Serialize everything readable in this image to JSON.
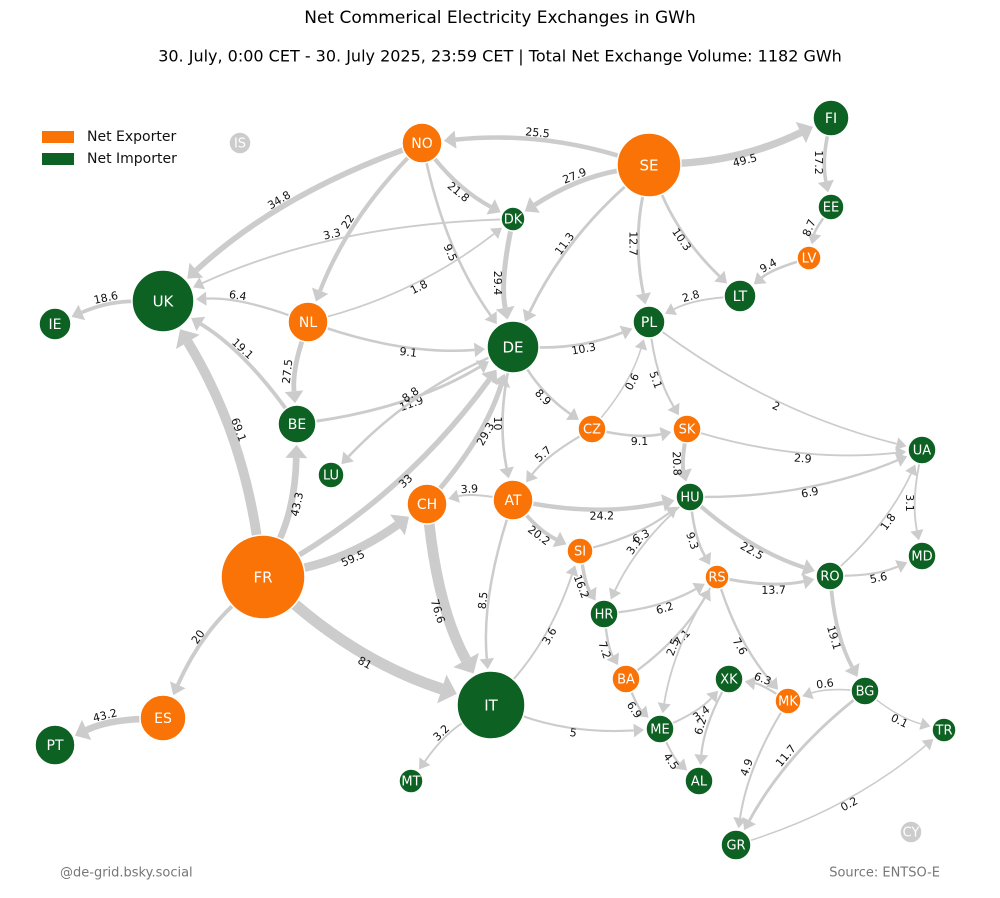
{
  "title": "Net Commerical Electricity Exchanges in GWh",
  "subtitle": "30. July, 0:00 CET - 30. July 2025, 23:59 CET | Total Net Exchange Volume: 1182 GWh",
  "legend": [
    {
      "label": "Net Exporter",
      "color": "#f97306"
    },
    {
      "label": "Net Importer",
      "color": "#0d6123"
    }
  ],
  "neutral_color": "#cccccc",
  "edge_color": "#cccccc",
  "nodes": [
    {
      "label": "IS",
      "group": null
    },
    {
      "label": "NO",
      "group": 0
    },
    {
      "label": "SE",
      "group": 0
    },
    {
      "label": "FI",
      "group": 1
    },
    {
      "label": "DK",
      "group": 1
    },
    {
      "label": "EE",
      "group": 1
    },
    {
      "label": "LV",
      "group": 0
    },
    {
      "label": "UK",
      "group": 1
    },
    {
      "label": "IE",
      "group": 1
    },
    {
      "label": "NL",
      "group": 0
    },
    {
      "label": "DE",
      "group": 1
    },
    {
      "label": "PL",
      "group": 1
    },
    {
      "label": "LT",
      "group": 1
    },
    {
      "label": "BE",
      "group": 1
    },
    {
      "label": "LU",
      "group": 1
    },
    {
      "label": "CZ",
      "group": 0
    },
    {
      "label": "SK",
      "group": 0
    },
    {
      "label": "UA",
      "group": 1
    },
    {
      "label": "CH",
      "group": 0
    },
    {
      "label": "AT",
      "group": 0
    },
    {
      "label": "HU",
      "group": 1
    },
    {
      "label": "FR",
      "group": 0
    },
    {
      "label": "SI",
      "group": 0
    },
    {
      "label": "MD",
      "group": 1
    },
    {
      "label": "RS",
      "group": 0
    },
    {
      "label": "RO",
      "group": 1
    },
    {
      "label": "HR",
      "group": 1
    },
    {
      "label": "BA",
      "group": 0
    },
    {
      "label": "XK",
      "group": 1
    },
    {
      "label": "MK",
      "group": 0
    },
    {
      "label": "BG",
      "group": 1
    },
    {
      "label": "ES",
      "group": 0
    },
    {
      "label": "IT",
      "group": 1
    },
    {
      "label": "ME",
      "group": 1
    },
    {
      "label": "TR",
      "group": 1
    },
    {
      "label": "PT",
      "group": 1
    },
    {
      "label": "MT",
      "group": 1
    },
    {
      "label": "AL",
      "group": 1
    },
    {
      "label": "GR",
      "group": 1
    },
    {
      "label": "CY",
      "group": null
    }
  ],
  "edges": [
    {
      "from": 1,
      "to": 7,
      "value": 34.8
    },
    {
      "from": 1,
      "to": 9,
      "value": 22.0
    },
    {
      "from": 4,
      "to": 7,
      "value": 3.3
    },
    {
      "from": 9,
      "to": 4,
      "value": 1.8
    },
    {
      "from": 1,
      "to": 4,
      "value": 21.8
    },
    {
      "from": 1,
      "to": 10,
      "value": 9.5
    },
    {
      "from": 2,
      "to": 1,
      "value": 25.5
    },
    {
      "from": 2,
      "to": 4,
      "value": 27.9
    },
    {
      "from": 2,
      "to": 10,
      "value": 11.3
    },
    {
      "from": 2,
      "to": 11,
      "value": 12.7
    },
    {
      "from": 2,
      "to": 12,
      "value": 10.3
    },
    {
      "from": 2,
      "to": 3,
      "value": 49.5
    },
    {
      "from": 3,
      "to": 5,
      "value": 17.2
    },
    {
      "from": 5,
      "to": 6,
      "value": 8.7
    },
    {
      "from": 6,
      "to": 12,
      "value": 9.4
    },
    {
      "from": 12,
      "to": 11,
      "value": 2.8
    },
    {
      "from": 4,
      "to": 10,
      "value": 29.4
    },
    {
      "from": 9,
      "to": 7,
      "value": 6.4
    },
    {
      "from": 7,
      "to": 8,
      "value": 18.6
    },
    {
      "from": 9,
      "to": 10,
      "value": 9.1
    },
    {
      "from": 9,
      "to": 13,
      "value": 27.5
    },
    {
      "from": 13,
      "to": 7,
      "value": 19.1
    },
    {
      "from": 13,
      "to": 10,
      "value": 11.9
    },
    {
      "from": 10,
      "to": 14,
      "value": 8.8
    },
    {
      "from": 21,
      "to": 7,
      "value": 69.1
    },
    {
      "from": 21,
      "to": 13,
      "value": 43.3
    },
    {
      "from": 21,
      "to": 10,
      "value": 33.0
    },
    {
      "from": 21,
      "to": 18,
      "value": 59.5
    },
    {
      "from": 21,
      "to": 32,
      "value": 81.0
    },
    {
      "from": 18,
      "to": 10,
      "value": 29.3
    },
    {
      "from": 18,
      "to": 32,
      "value": 76.6
    },
    {
      "from": 19,
      "to": 18,
      "value": 3.9
    },
    {
      "from": 10,
      "to": 19,
      "value": 10.0
    },
    {
      "from": 19,
      "to": 32,
      "value": 8.5
    },
    {
      "from": 10,
      "to": 11,
      "value": 10.3
    },
    {
      "from": 10,
      "to": 15,
      "value": 8.9
    },
    {
      "from": 15,
      "to": 11,
      "value": 0.6
    },
    {
      "from": 15,
      "to": 19,
      "value": 5.7
    },
    {
      "from": 15,
      "to": 16,
      "value": 9.1
    },
    {
      "from": 11,
      "to": 16,
      "value": 5.1
    },
    {
      "from": 11,
      "to": 17,
      "value": 2.0
    },
    {
      "from": 16,
      "to": 17,
      "value": 2.9
    },
    {
      "from": 16,
      "to": 20,
      "value": 20.8
    },
    {
      "from": 19,
      "to": 20,
      "value": 24.2
    },
    {
      "from": 19,
      "to": 22,
      "value": 20.2
    },
    {
      "from": 20,
      "to": 17,
      "value": 6.9
    },
    {
      "from": 22,
      "to": 20,
      "value": 6.3
    },
    {
      "from": 20,
      "to": 26,
      "value": 3.1
    },
    {
      "from": 20,
      "to": 24,
      "value": 9.3
    },
    {
      "from": 20,
      "to": 25,
      "value": 22.5
    },
    {
      "from": 22,
      "to": 26,
      "value": 16.2
    },
    {
      "from": 32,
      "to": 22,
      "value": 3.6
    },
    {
      "from": 25,
      "to": 17,
      "value": 1.8
    },
    {
      "from": 17,
      "to": 23,
      "value": 3.1
    },
    {
      "from": 25,
      "to": 23,
      "value": 5.6
    },
    {
      "from": 24,
      "to": 25,
      "value": 13.7
    },
    {
      "from": 26,
      "to": 24,
      "value": 6.2
    },
    {
      "from": 26,
      "to": 27,
      "value": 7.2
    },
    {
      "from": 27,
      "to": 24,
      "value": 7.1
    },
    {
      "from": 24,
      "to": 33,
      "value": 2.5
    },
    {
      "from": 24,
      "to": 29,
      "value": 7.6
    },
    {
      "from": 27,
      "to": 33,
      "value": 6.9
    },
    {
      "from": 32,
      "to": 33,
      "value": 5.0
    },
    {
      "from": 33,
      "to": 28,
      "value": 3.4
    },
    {
      "from": 28,
      "to": 37,
      "value": 6.2
    },
    {
      "from": 33,
      "to": 37,
      "value": 4.5
    },
    {
      "from": 29,
      "to": 28,
      "value": 6.3
    },
    {
      "from": 30,
      "to": 29,
      "value": 0.6
    },
    {
      "from": 30,
      "to": 34,
      "value": 0.1
    },
    {
      "from": 30,
      "to": 38,
      "value": 11.7
    },
    {
      "from": 25,
      "to": 30,
      "value": 19.1
    },
    {
      "from": 29,
      "to": 38,
      "value": 4.9
    },
    {
      "from": 38,
      "to": 34,
      "value": 0.2
    },
    {
      "from": 31,
      "to": 35,
      "value": 43.2
    },
    {
      "from": 21,
      "to": 31,
      "value": 20.0
    },
    {
      "from": 32,
      "to": 36,
      "value": 3.2
    }
  ],
  "footer_left": "@de-grid.bsky.social",
  "footer_right": "Source: ENTSO-E"
}
